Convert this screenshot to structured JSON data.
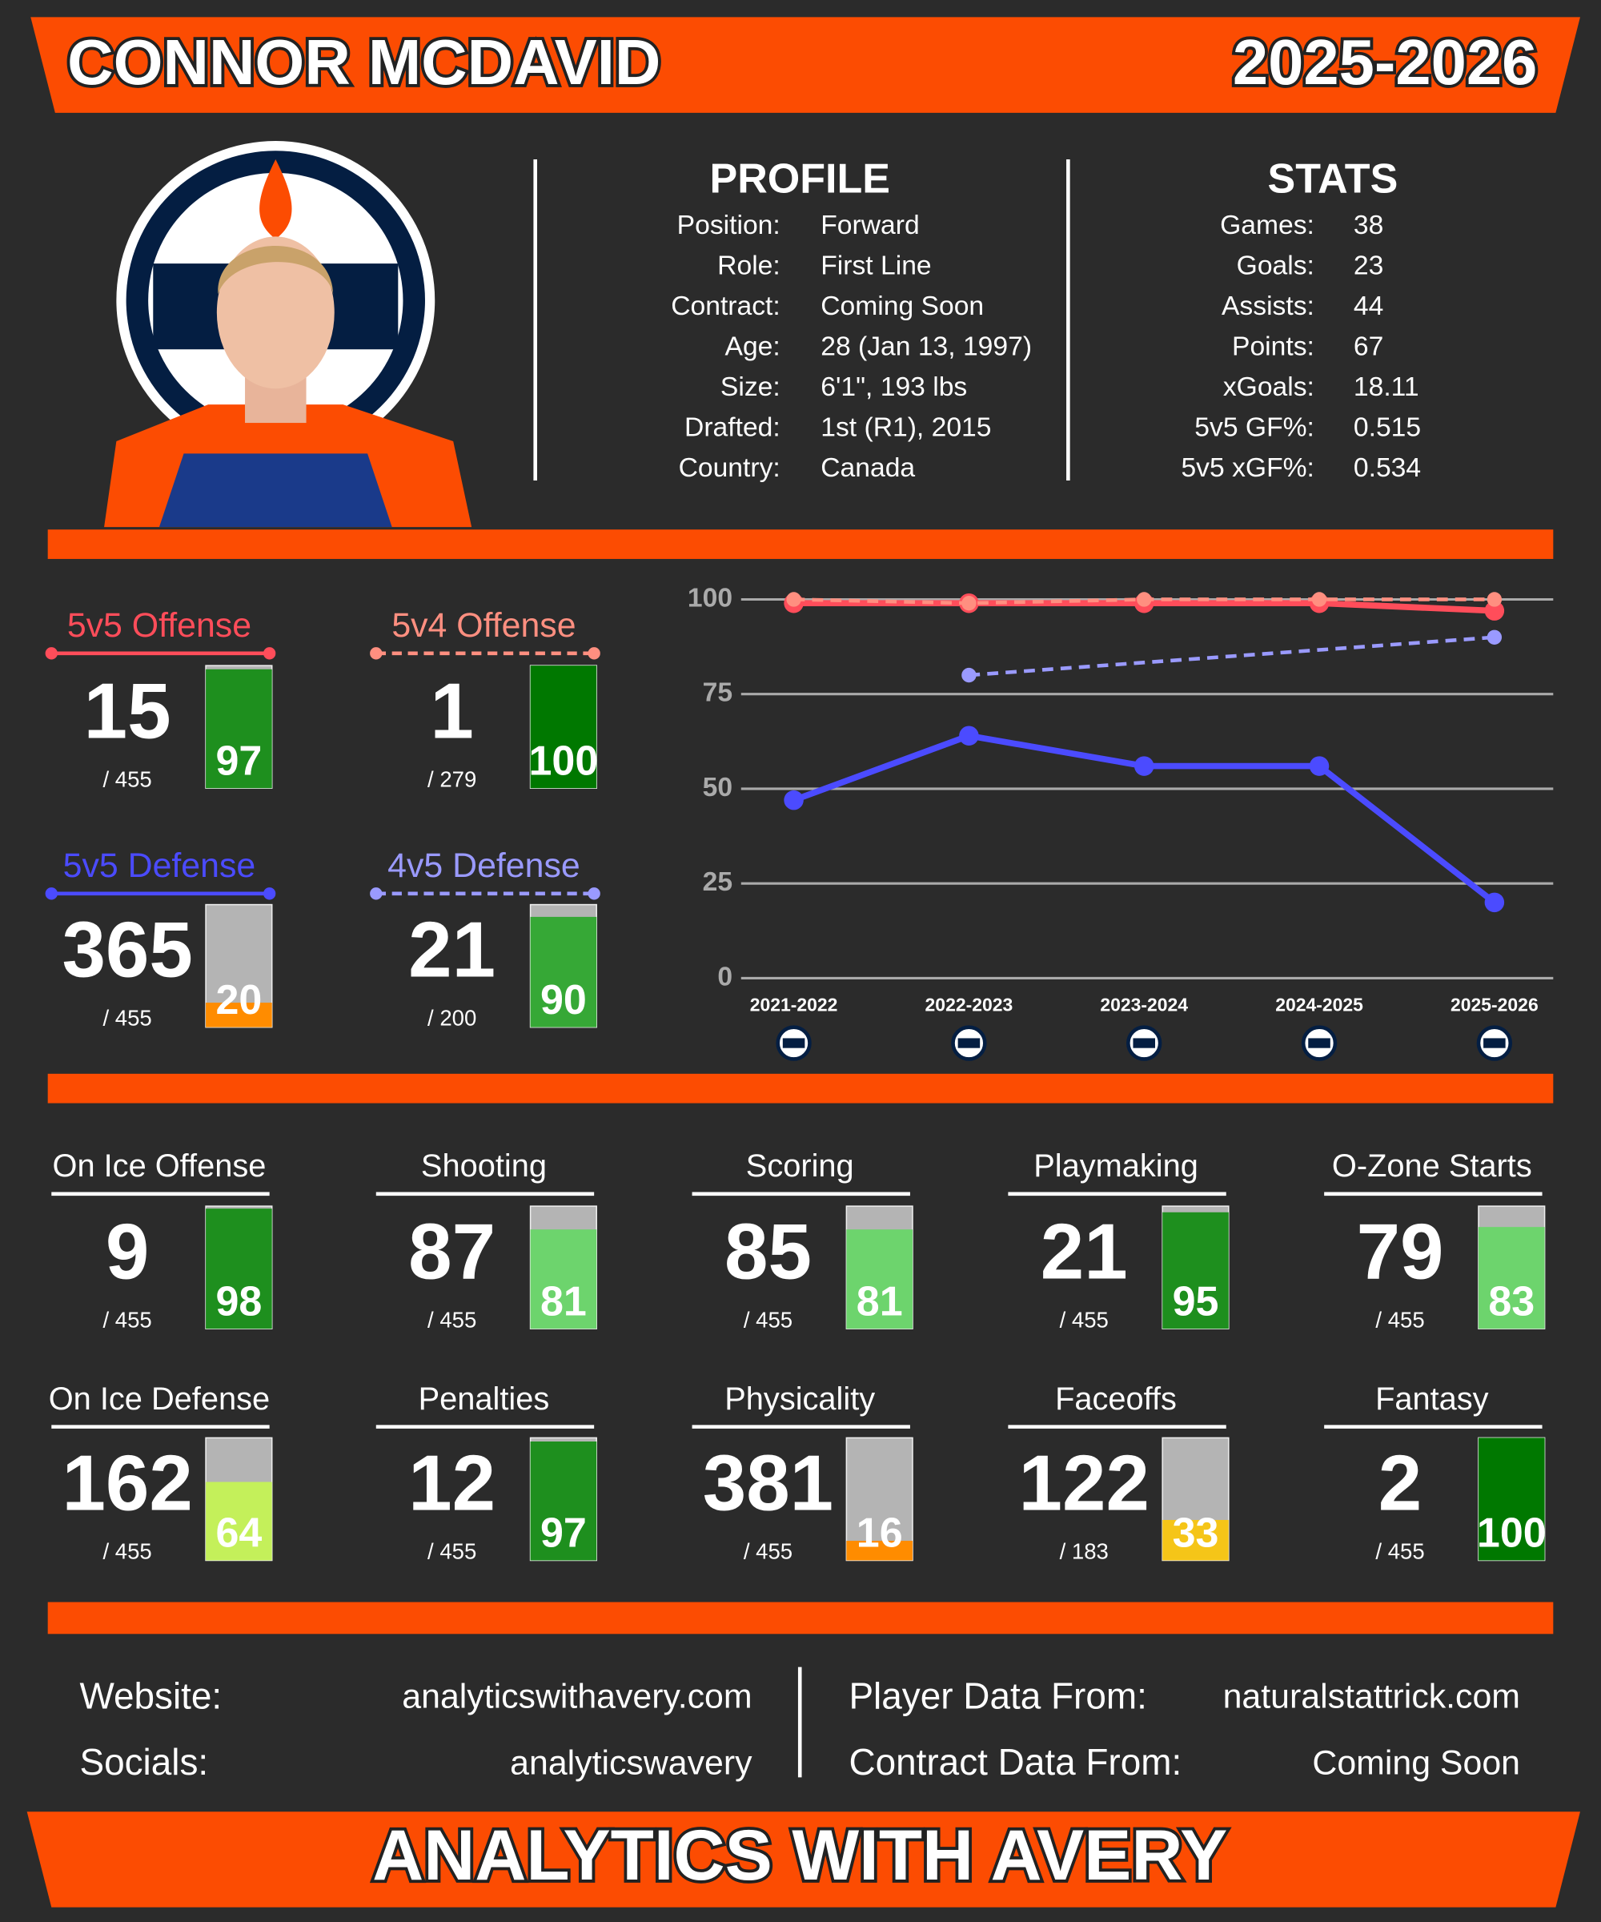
{
  "header": {
    "name": "CONNOR MCDAVID",
    "season": "2025-2026"
  },
  "profile": {
    "title": "PROFILE",
    "rows": [
      [
        "Position:",
        "Forward"
      ],
      [
        "Role:",
        "First Line"
      ],
      [
        "Contract:",
        "Coming Soon"
      ],
      [
        "Age:",
        "28 (Jan 13, 1997)"
      ],
      [
        "Size:",
        "6'1\", 193 lbs"
      ],
      [
        "Drafted:",
        "1st (R1), 2015"
      ],
      [
        "Country:",
        "Canada"
      ]
    ]
  },
  "stats": {
    "title": "STATS",
    "rows": [
      [
        "Games:",
        "38"
      ],
      [
        "Goals:",
        "23"
      ],
      [
        "Assists:",
        "44"
      ],
      [
        "Points:",
        "67"
      ],
      [
        "xGoals:",
        "18.11"
      ],
      [
        "5v5 GF%:",
        "0.515"
      ],
      [
        "5v5 xGF%:",
        "0.534"
      ]
    ]
  },
  "chart_data": {
    "type": "line",
    "categories": [
      "2021-2022",
      "2022-2023",
      "2023-2024",
      "2024-2025",
      "2025-2026"
    ],
    "ylim": [
      0,
      100
    ],
    "yticks": [
      0,
      25,
      50,
      75,
      100
    ],
    "grid": true,
    "series": [
      {
        "name": "5v5 Offense",
        "color": "#ff4d5a",
        "dash": false,
        "values": [
          99,
          99,
          99,
          99,
          97
        ],
        "rank": 15,
        "total": "/ 455",
        "percentile": 97,
        "percentile_color": "#1e8f1e"
      },
      {
        "name": "5v4 Offense",
        "color": "#ff8f80",
        "dash": true,
        "values": [
          100,
          99,
          100,
          100,
          100
        ],
        "rank": 1,
        "total": "/ 279",
        "percentile": 100,
        "percentile_color": "#007800"
      },
      {
        "name": "5v5 Defense",
        "color": "#4b4bff",
        "dash": false,
        "values": [
          47,
          64,
          56,
          56,
          20
        ],
        "rank": 365,
        "total": "/ 455",
        "percentile": 20,
        "percentile_color": "#ff8c00"
      },
      {
        "name": "4v5 Defense",
        "color": "#9a9aff",
        "dash": true,
        "x": [
          "2022-2023",
          "2025-2026"
        ],
        "values": [
          80,
          90
        ],
        "rank": 21,
        "total": "/ 200",
        "percentile": 90,
        "percentile_color": "#36a836"
      }
    ]
  },
  "ratings": [
    {
      "label": "On Ice Offense",
      "rank": 9,
      "total": "/ 455",
      "percentile": 98,
      "color": "#1e8f1e"
    },
    {
      "label": "Shooting",
      "rank": 87,
      "total": "/ 455",
      "percentile": 81,
      "color": "#6dd46d"
    },
    {
      "label": "Scoring",
      "rank": 85,
      "total": "/ 455",
      "percentile": 81,
      "color": "#6dd46d"
    },
    {
      "label": "Playmaking",
      "rank": 21,
      "total": "/ 455",
      "percentile": 95,
      "color": "#1e8f1e"
    },
    {
      "label": "O-Zone Starts",
      "rank": 79,
      "total": "/ 455",
      "percentile": 83,
      "color": "#6dd46d"
    },
    {
      "label": "On Ice Defense",
      "rank": 162,
      "total": "/ 455",
      "percentile": 64,
      "color": "#c4f05a"
    },
    {
      "label": "Penalties",
      "rank": 12,
      "total": "/ 455",
      "percentile": 97,
      "color": "#1e8f1e"
    },
    {
      "label": "Physicality",
      "rank": 381,
      "total": "/ 455",
      "percentile": 16,
      "color": "#ff8c00"
    },
    {
      "label": "Faceoffs",
      "rank": 122,
      "total": "/ 183",
      "percentile": 33,
      "color": "#f5c518"
    },
    {
      "label": "Fantasy",
      "rank": 2,
      "total": "/ 455",
      "percentile": 100,
      "color": "#007800"
    }
  ],
  "footer": {
    "left": [
      [
        "Website:",
        "analyticswithavery.com"
      ],
      [
        "Socials:",
        "analyticswavery"
      ]
    ],
    "right": [
      [
        "Player Data From:",
        "naturalstattrick.com"
      ],
      [
        "Contract Data From:",
        "Coming Soon"
      ]
    ],
    "banner": "ANALYTICS WITH AVERY"
  }
}
